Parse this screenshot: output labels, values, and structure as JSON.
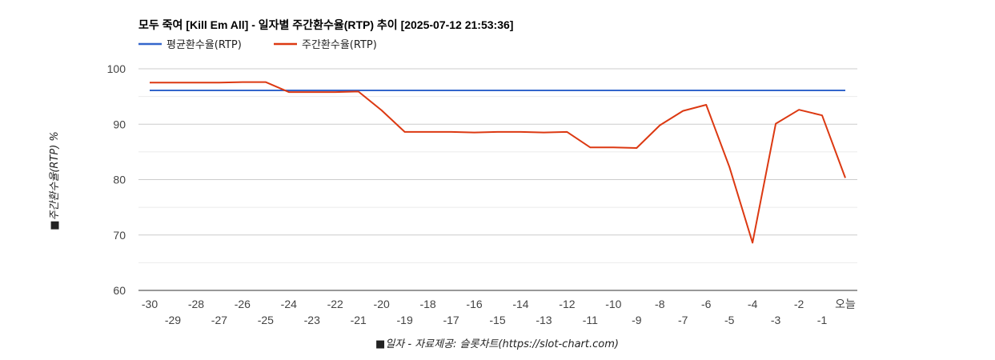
{
  "chart_data": {
    "type": "line",
    "title": "모두 죽여 [Kill Em All] - 일자별 주간환수율(RTP) 추이 [2025-07-12 21:53:36]",
    "xlabel": "■일자 - 자료제공: 슬롯차트(https://slot-chart.com)",
    "ylabel": "■주간환수율(RTP) %",
    "ylim": [
      60,
      100
    ],
    "yticks": [
      "60",
      "70",
      "80",
      "90",
      "100"
    ],
    "legend_position": "top-left",
    "categories": [
      "-30",
      "-29",
      "-28",
      "-27",
      "-26",
      "-25",
      "-24",
      "-23",
      "-22",
      "-21",
      "-20",
      "-19",
      "-18",
      "-17",
      "-16",
      "-15",
      "-14",
      "-13",
      "-12",
      "-11",
      "-10",
      "-9",
      "-8",
      "-7",
      "-6",
      "-5",
      "-4",
      "-3",
      "-2",
      "-1",
      "오늘"
    ],
    "series": [
      {
        "name": "평균환수율(RTP)",
        "color": "#3366cc",
        "values": [
          96.1,
          96.1,
          96.1,
          96.1,
          96.1,
          96.1,
          96.1,
          96.1,
          96.1,
          96.1,
          96.1,
          96.1,
          96.1,
          96.1,
          96.1,
          96.1,
          96.1,
          96.1,
          96.1,
          96.1,
          96.1,
          96.1,
          96.1,
          96.1,
          96.1,
          96.1,
          96.1,
          96.1,
          96.1,
          96.1,
          96.1
        ]
      },
      {
        "name": "주간환수율(RTP)",
        "color": "#dc3912",
        "values": [
          97.5,
          97.5,
          97.5,
          97.5,
          97.6,
          97.6,
          95.8,
          95.8,
          95.8,
          95.9,
          92.5,
          88.6,
          88.6,
          88.6,
          88.5,
          88.6,
          88.6,
          88.5,
          88.6,
          85.8,
          85.8,
          85.7,
          89.8,
          92.4,
          93.5,
          82.3,
          68.6,
          90.1,
          92.6,
          91.6,
          80.3
        ]
      }
    ]
  }
}
